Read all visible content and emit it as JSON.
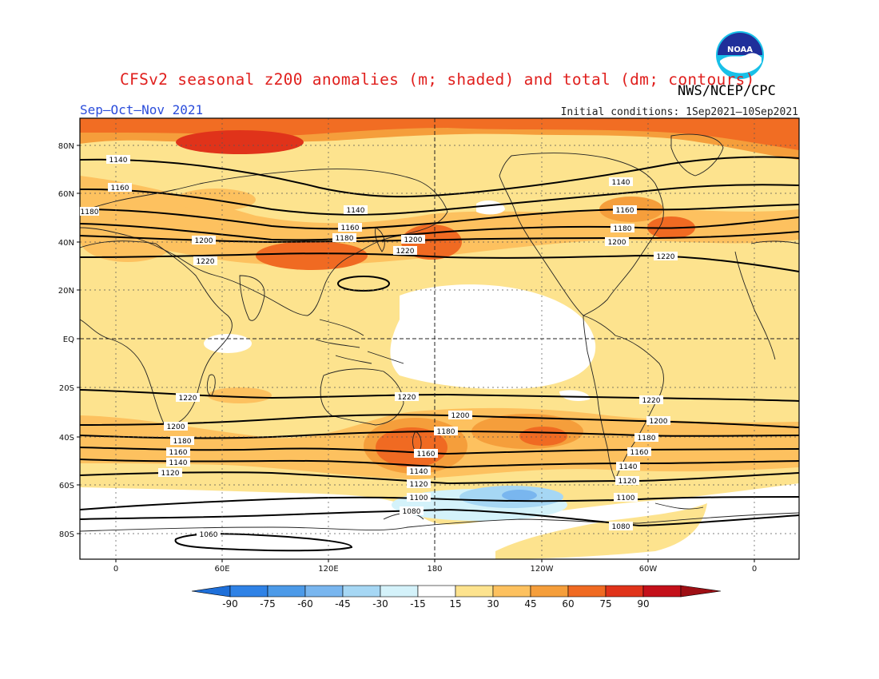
{
  "title": "CFSv2 seasonal z200 anomalies (m; shaded) and total (dm; contours)",
  "agency": "NWS/NCEP/CPC",
  "logo_text": "NOAA",
  "period": "Sep–Oct–Nov 2021",
  "initial_conditions": "Initial conditions: 1Sep2021–10Sep2021",
  "lat_ticks": [
    "80N",
    "60N",
    "40N",
    "20N",
    "EQ",
    "20S",
    "40S",
    "60S",
    "80S"
  ],
  "lon_ticks": [
    "0",
    "60E",
    "120E",
    "180",
    "120W",
    "60W",
    "0"
  ],
  "colorbar": {
    "labels": [
      "-90",
      "-75",
      "-60",
      "-45",
      "-30",
      "-15",
      "15",
      "30",
      "45",
      "60",
      "75",
      "90"
    ],
    "colors": [
      "#1e6fd9",
      "#2f82e6",
      "#4c9ae8",
      "#79b6ef",
      "#a6d7f4",
      "#d4f2fa",
      "#ffffff",
      "#fde38e",
      "#fdc15f",
      "#f59e3b",
      "#f06a22",
      "#e0331a",
      "#c4101a",
      "#9e0f14"
    ]
  },
  "contour_labels": [
    "1140",
    "1160",
    "1180",
    "1200",
    "1220",
    "1140",
    "1160",
    "1180",
    "1200",
    "1220",
    "1140",
    "1160",
    "1180",
    "1200",
    "1220",
    "1220",
    "1200",
    "1180",
    "1160",
    "1140",
    "1120",
    "1220",
    "1200",
    "1180",
    "1160",
    "1140",
    "1120",
    "1100",
    "1080",
    "1220",
    "1200",
    "1180",
    "1160",
    "1140",
    "1120",
    "1100",
    "1080",
    "1060"
  ],
  "chart_data": {
    "type": "heatmap",
    "title": "CFSv2 seasonal z200 anomalies (m; shaded) and total (dm; contours)",
    "anomaly_units": "m",
    "contour_units": "dm",
    "contour_levels": [
      1060,
      1080,
      1100,
      1120,
      1140,
      1160,
      1180,
      1200,
      1220
    ],
    "color_levels": [
      -90,
      -75,
      -60,
      -45,
      -30,
      -15,
      15,
      30,
      45,
      60,
      75,
      90
    ],
    "lat_range": [
      "90S",
      "90N"
    ],
    "lon_range": [
      "20W",
      "20E"
    ]
  }
}
